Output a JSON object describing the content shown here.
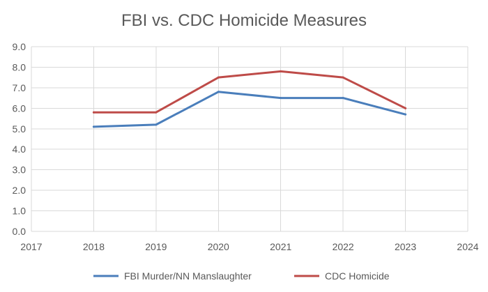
{
  "chart_data": {
    "type": "line",
    "title": "FBI vs. CDC Homicide Measures",
    "xlabel": "",
    "ylabel": "",
    "xlim": [
      2017,
      2024
    ],
    "ylim": [
      0,
      9
    ],
    "x_ticks": [
      2017,
      2018,
      2019,
      2020,
      2021,
      2022,
      2023,
      2024
    ],
    "x_tick_labels": [
      "2017",
      "2018",
      "2019",
      "2020",
      "2021",
      "2022",
      "2023",
      "2024"
    ],
    "y_ticks": [
      0,
      1,
      2,
      3,
      4,
      5,
      6,
      7,
      8,
      9
    ],
    "y_tick_labels": [
      "0.0",
      "1.0",
      "2.0",
      "3.0",
      "4.0",
      "5.0",
      "6.0",
      "7.0",
      "8.0",
      "9.0"
    ],
    "grid": true,
    "legend_position": "bottom",
    "x": [
      2018,
      2019,
      2020,
      2021,
      2022,
      2023
    ],
    "series": [
      {
        "name": "FBI Murder/NN Manslaughter",
        "color": "#4a7ebb",
        "values": [
          5.1,
          5.2,
          6.8,
          6.5,
          6.5,
          5.7
        ]
      },
      {
        "name": "CDC Homicide",
        "color": "#be4b48",
        "values": [
          5.8,
          5.8,
          7.5,
          7.8,
          7.5,
          6.0
        ]
      }
    ]
  }
}
